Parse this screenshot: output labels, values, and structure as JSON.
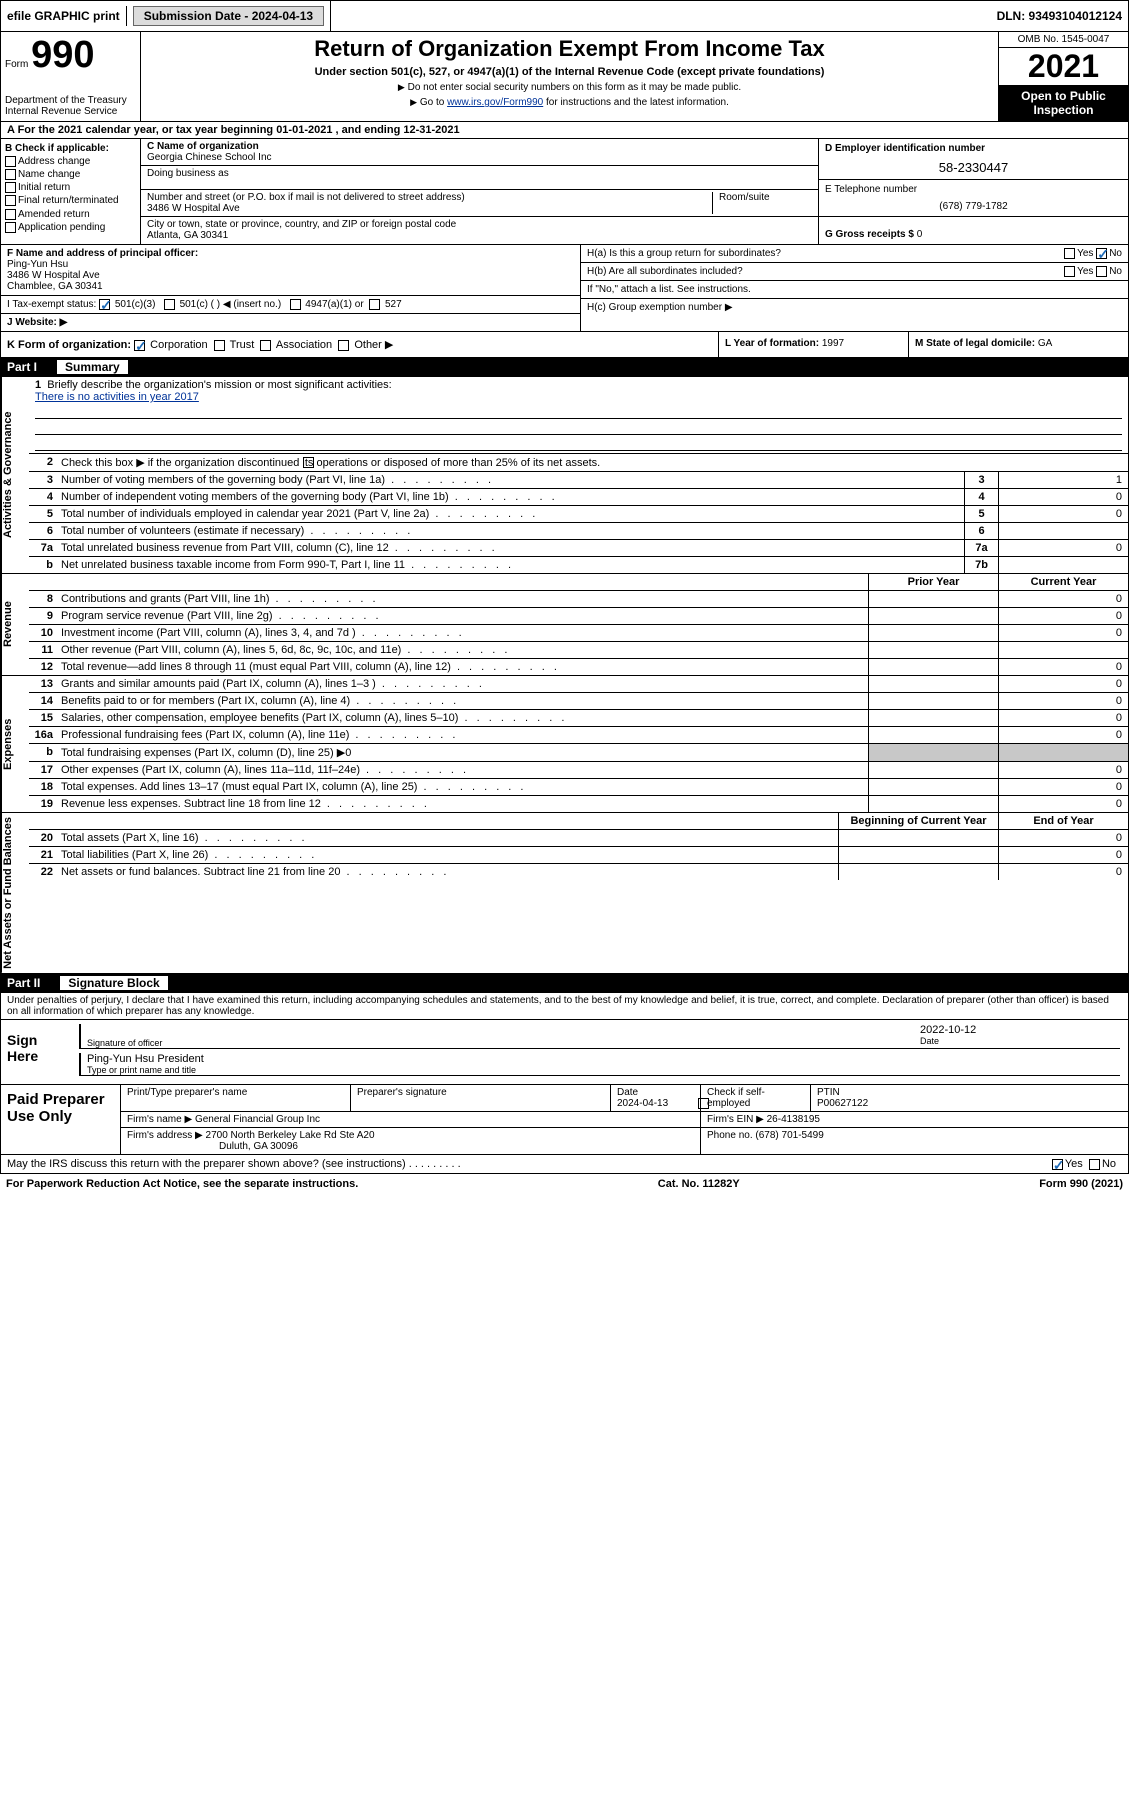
{
  "top": {
    "efile": "efile GRAPHIC print",
    "sub_label": "Submission Date - 2024-04-13",
    "dln": "DLN: 93493104012124"
  },
  "hdr": {
    "form_word": "Form",
    "form_num": "990",
    "title": "Return of Organization Exempt From Income Tax",
    "sub": "Under section 501(c), 527, or 4947(a)(1) of the Internal Revenue Code (except private foundations)",
    "note1": "Do not enter social security numbers on this form as it may be made public.",
    "note2_pre": "Go to ",
    "note2_link": "www.irs.gov/Form990",
    "note2_post": " for instructions and the latest information.",
    "dept": "Department of the Treasury",
    "irs": "Internal Revenue Service",
    "omb": "OMB No. 1545-0047",
    "year": "2021",
    "open": "Open to Public Inspection"
  },
  "rowA": "A For the 2021 calendar year, or tax year beginning 01-01-2021   , and ending 12-31-2021",
  "colB": {
    "lead": "B Check if applicable:",
    "items": [
      "Address change",
      "Name change",
      "Initial return",
      "Final return/terminated",
      "Amended return",
      "Application pending"
    ]
  },
  "mid": {
    "c_label": "C Name of organization",
    "c_val": "Georgia Chinese School Inc",
    "dba": "Doing business as",
    "addr_label": "Number and street (or P.O. box if mail is not delivered to street address)",
    "room": "Room/suite",
    "addr_val": "3486 W Hospital Ave",
    "city_label": "City or town, state or province, country, and ZIP or foreign postal code",
    "city_val": "Atlanta, GA  30341",
    "f_label": "F Name and address of principal officer:",
    "f_val": "Ping-Yun Hsu\n3486 W Hospital Ave\nChamblee, GA  30341"
  },
  "right": {
    "d_label": "D Employer identification number",
    "d_val": "58-2330447",
    "e_label": "E Telephone number",
    "e_val": "(678) 779-1782",
    "g_label": "G Gross receipts $",
    "g_val": "0",
    "ha": "H(a)  Is this a group return for subordinates?",
    "hb": "H(b)  Are all subordinates included?",
    "hnote": "If \"No,\" attach a list. See instructions.",
    "hc": "H(c)  Group exemption number ▶",
    "yes": "Yes",
    "no": "No"
  },
  "i": {
    "label": "I   Tax-exempt status:",
    "a": "501(c)(3)",
    "b": "501(c) (   ) ◀ (insert no.)",
    "c": "4947(a)(1) or",
    "d": "527"
  },
  "j": "J   Website: ▶",
  "k": {
    "label": "K Form of organization:",
    "corp": "Corporation",
    "trust": "Trust",
    "assoc": "Association",
    "other": "Other ▶"
  },
  "l": {
    "label": "L Year of formation:",
    "val": "1997"
  },
  "m": {
    "label": "M State of legal domicile:",
    "val": "GA"
  },
  "part1": {
    "num": "Part I",
    "title": "Summary"
  },
  "vtabs": {
    "ag": "Activities & Governance",
    "rev": "Revenue",
    "exp": "Expenses",
    "na": "Net Assets or Fund Balances"
  },
  "s1": {
    "label": "Briefly describe the organization's mission or most significant activities:",
    "text": "There is no activities in year 2017"
  },
  "s2": "Check this box ▶        if the organization discontinued its operations or disposed of more than 25% of its net assets.",
  "summary_lines_gov": [
    {
      "n": "3",
      "t": "Number of voting members of the governing body (Part VI, line 1a)",
      "box": "3",
      "v": "1"
    },
    {
      "n": "4",
      "t": "Number of independent voting members of the governing body (Part VI, line 1b)",
      "box": "4",
      "v": "0"
    },
    {
      "n": "5",
      "t": "Total number of individuals employed in calendar year 2021 (Part V, line 2a)",
      "box": "5",
      "v": "0"
    },
    {
      "n": "6",
      "t": "Total number of volunteers (estimate if necessary)",
      "box": "6",
      "v": ""
    },
    {
      "n": "7a",
      "t": "Total unrelated business revenue from Part VIII, column (C), line 12",
      "box": "7a",
      "v": "0"
    },
    {
      "n": "b",
      "t": "Net unrelated business taxable income from Form 990-T, Part I, line 11",
      "box": "7b",
      "v": ""
    }
  ],
  "col_hdr": {
    "prior": "Prior Year",
    "current": "Current Year"
  },
  "rev_lines": [
    {
      "n": "8",
      "t": "Contributions and grants (Part VIII, line 1h)",
      "p": "",
      "c": "0"
    },
    {
      "n": "9",
      "t": "Program service revenue (Part VIII, line 2g)",
      "p": "",
      "c": "0"
    },
    {
      "n": "10",
      "t": "Investment income (Part VIII, column (A), lines 3, 4, and 7d )",
      "p": "",
      "c": "0"
    },
    {
      "n": "11",
      "t": "Other revenue (Part VIII, column (A), lines 5, 6d, 8c, 9c, 10c, and 11e)",
      "p": "",
      "c": ""
    },
    {
      "n": "12",
      "t": "Total revenue—add lines 8 through 11 (must equal Part VIII, column (A), line 12)",
      "p": "",
      "c": "0"
    }
  ],
  "exp_lines": [
    {
      "n": "13",
      "t": "Grants and similar amounts paid (Part IX, column (A), lines 1–3 )",
      "p": "",
      "c": "0"
    },
    {
      "n": "14",
      "t": "Benefits paid to or for members (Part IX, column (A), line 4)",
      "p": "",
      "c": "0"
    },
    {
      "n": "15",
      "t": "Salaries, other compensation, employee benefits (Part IX, column (A), lines 5–10)",
      "p": "",
      "c": "0"
    },
    {
      "n": "16a",
      "t": "Professional fundraising fees (Part IX, column (A), line 11e)",
      "p": "",
      "c": "0"
    },
    {
      "n": "b",
      "t": "Total fundraising expenses (Part IX, column (D), line 25) ▶0",
      "grey": true
    },
    {
      "n": "17",
      "t": "Other expenses (Part IX, column (A), lines 11a–11d, 11f–24e)",
      "p": "",
      "c": "0"
    },
    {
      "n": "18",
      "t": "Total expenses. Add lines 13–17 (must equal Part IX, column (A), line 25)",
      "p": "",
      "c": "0"
    },
    {
      "n": "19",
      "t": "Revenue less expenses. Subtract line 18 from line 12",
      "p": "",
      "c": "0"
    }
  ],
  "na_hdr": {
    "beg": "Beginning of Current Year",
    "end": "End of Year"
  },
  "na_lines": [
    {
      "n": "20",
      "t": "Total assets (Part X, line 16)",
      "p": "",
      "c": "0"
    },
    {
      "n": "21",
      "t": "Total liabilities (Part X, line 26)",
      "p": "",
      "c": "0"
    },
    {
      "n": "22",
      "t": "Net assets or fund balances. Subtract line 21 from line 20",
      "p": "",
      "c": "0"
    }
  ],
  "part2": {
    "num": "Part II",
    "title": "Signature Block"
  },
  "sig_decl": "Under penalties of perjury, I declare that I have examined this return, including accompanying schedules and statements, and to the best of my knowledge and belief, it is true, correct, and complete. Declaration of preparer (other than officer) is based on all information of which preparer has any knowledge.",
  "sign": {
    "here": "Sign Here",
    "sig_off": "Signature of officer",
    "date": "2022-10-12",
    "date_lbl": "Date",
    "name": "Ping-Yun Hsu  President",
    "name_lbl": "Type or print name and title"
  },
  "paid": {
    "lbl": "Paid Preparer Use Only",
    "h1": "Print/Type preparer's name",
    "h2": "Preparer's signature",
    "h3": "Date",
    "h3v": "2024-04-13",
    "h4": "Check         if self-employed",
    "h5": "PTIN",
    "h5v": "P00627122",
    "firm_l": "Firm's name    ▶",
    "firm_v": "General Financial Group Inc",
    "ein_l": "Firm's EIN ▶",
    "ein_v": "26-4138195",
    "addr_l": "Firm's address ▶",
    "addr_v": "2700 North Berkeley Lake Rd Ste A20",
    "addr_v2": "Duluth, GA  30096",
    "phone_l": "Phone no.",
    "phone_v": "(678) 701-5499"
  },
  "last": {
    "q": "May the IRS discuss this return with the preparer shown above? (see instructions)",
    "yes": "Yes",
    "no": "No"
  },
  "footer": {
    "l": "For Paperwork Reduction Act Notice, see the separate instructions.",
    "m": "Cat. No. 11282Y",
    "r": "Form 990 (2021)"
  }
}
